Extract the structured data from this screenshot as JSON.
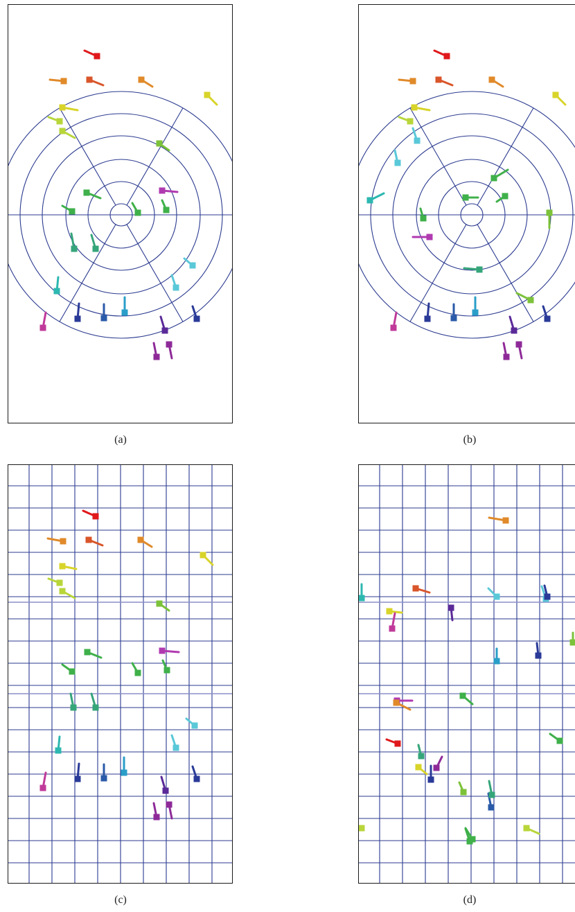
{
  "captions": {
    "a": "(a)",
    "b": "(b)",
    "c": "(c)",
    "d": "(d)"
  },
  "colors": {
    "grid": "#2b3a8f",
    "grid_light": "#8a8fc8",
    "border": "#1a1a1a",
    "palette": [
      "#e0191c",
      "#d9552a",
      "#e08a2a",
      "#d8d42a",
      "#b8d63a",
      "#7cc23a",
      "#3fb04a",
      "#35a57a",
      "#2db8b0",
      "#5ac8d8",
      "#2a9ec8",
      "#2a5aa8",
      "#2a3a98",
      "#5a2a98",
      "#8e2a98",
      "#b03ab0",
      "#c03a9a"
    ]
  }
}
